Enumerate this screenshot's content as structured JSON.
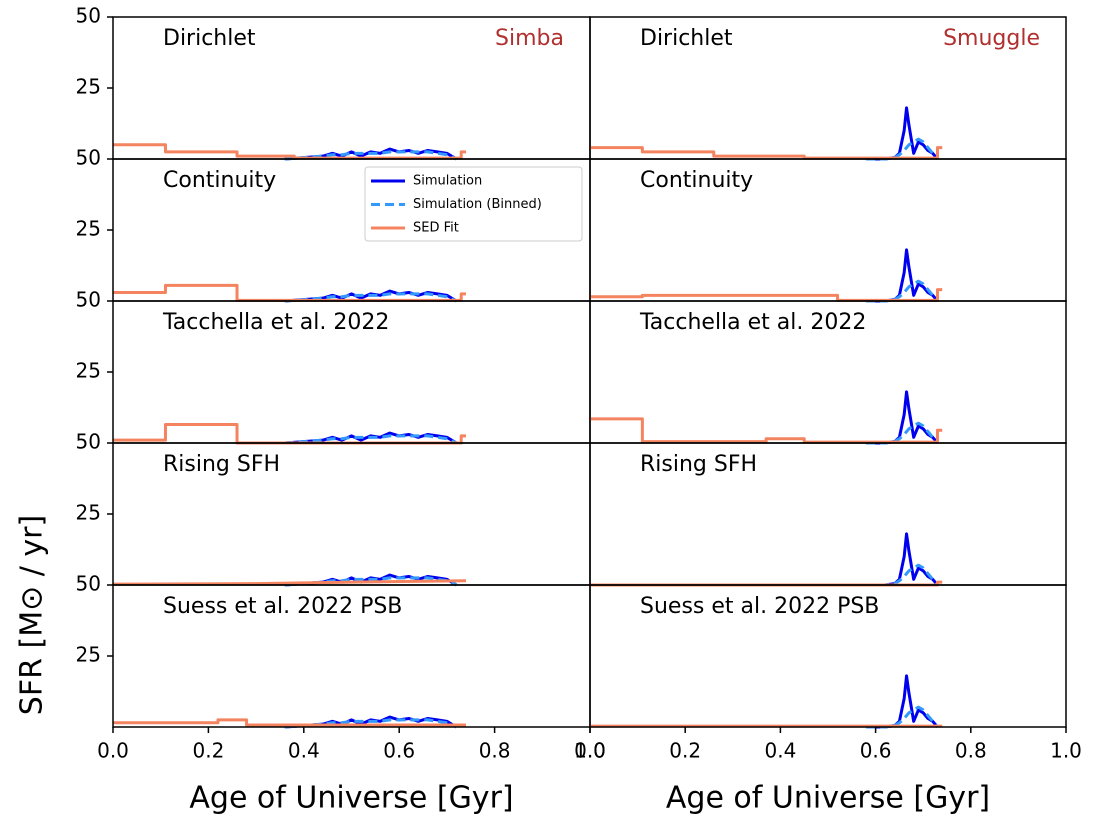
{
  "chart_data": [
    {
      "type": "line",
      "title": "Dirichlet",
      "label": "Simba",
      "ylim": [
        0,
        50
      ],
      "yticks": [
        25,
        50
      ],
      "xlim": [
        0,
        1
      ],
      "series": [
        {
          "color": "#0000ee",
          "x": [
            0.36,
            0.4,
            0.44,
            0.46,
            0.48,
            0.5,
            0.52,
            0.54,
            0.56,
            0.58,
            0.6,
            0.62,
            0.64,
            0.66,
            0.68,
            0.7,
            0.72
          ],
          "values": [
            0,
            0.5,
            1,
            2,
            1,
            2.5,
            1,
            2.5,
            2,
            3.5,
            2.5,
            3,
            2,
            3,
            2.5,
            2,
            0
          ]
        },
        {
          "color": "#3399ff",
          "linestyle": "dashed",
          "x": [
            0.36,
            0.4,
            0.44,
            0.46,
            0.48,
            0.5,
            0.52,
            0.54,
            0.56,
            0.58,
            0.6,
            0.62,
            0.64,
            0.66,
            0.68,
            0.7,
            0.72
          ],
          "values": [
            0,
            0.5,
            1,
            1.5,
            1.5,
            2,
            2,
            2,
            2,
            2.5,
            2.5,
            2.5,
            2.5,
            2.5,
            2,
            1.5,
            0
          ]
        },
        {
          "color": "#f4845f",
          "x": [
            0,
            0.11,
            0.11,
            0.26,
            0.26,
            0.38,
            0.38,
            0.73,
            0.73,
            0.74
          ],
          "values": [
            5,
            5,
            2.5,
            2.5,
            1,
            1,
            0.3,
            0.3,
            2.5,
            2.5
          ]
        }
      ]
    },
    {
      "type": "line",
      "title": "Continuity",
      "ylim": [
        0,
        50
      ],
      "yticks": [
        25,
        50
      ],
      "xlim": [
        0,
        1
      ],
      "legend": "upper right",
      "series": [
        {
          "name": "Simulation",
          "color": "#0000ee",
          "x": [
            0.36,
            0.4,
            0.44,
            0.46,
            0.48,
            0.5,
            0.52,
            0.54,
            0.56,
            0.58,
            0.6,
            0.62,
            0.64,
            0.66,
            0.68,
            0.7,
            0.72
          ],
          "values": [
            0,
            0.5,
            1,
            2,
            1,
            2.5,
            1,
            2.5,
            2,
            3.5,
            2.5,
            3,
            2,
            3,
            2.5,
            2,
            0
          ]
        },
        {
          "name": "Simulation (Binned)",
          "color": "#3399ff",
          "linestyle": "dashed",
          "x": [
            0.36,
            0.4,
            0.44,
            0.46,
            0.48,
            0.5,
            0.52,
            0.54,
            0.56,
            0.58,
            0.6,
            0.62,
            0.64,
            0.66,
            0.68,
            0.7,
            0.72
          ],
          "values": [
            0,
            0.5,
            1,
            1.5,
            1.5,
            2,
            2,
            2,
            2,
            2.5,
            2.5,
            2.5,
            2.5,
            2.5,
            2,
            1.5,
            0
          ]
        },
        {
          "name": "SED Fit",
          "color": "#f4845f",
          "x": [
            0,
            0.11,
            0.11,
            0.26,
            0.26,
            0.73,
            0.73,
            0.74
          ],
          "values": [
            3,
            3,
            5.5,
            5.5,
            0.2,
            0.2,
            2.5,
            2.5
          ]
        }
      ]
    },
    {
      "type": "line",
      "title": "Tacchella et al. 2022",
      "ylim": [
        0,
        50
      ],
      "yticks": [
        25,
        50
      ],
      "xlim": [
        0,
        1
      ],
      "series": [
        {
          "color": "#0000ee",
          "x": [
            0.36,
            0.4,
            0.44,
            0.46,
            0.48,
            0.5,
            0.52,
            0.54,
            0.56,
            0.58,
            0.6,
            0.62,
            0.64,
            0.66,
            0.68,
            0.7,
            0.72
          ],
          "values": [
            0,
            0.5,
            1,
            2,
            1,
            2.5,
            1,
            2.5,
            2,
            3.5,
            2.5,
            3,
            2,
            3,
            2.5,
            2,
            0
          ]
        },
        {
          "color": "#3399ff",
          "linestyle": "dashed",
          "x": [
            0.36,
            0.4,
            0.44,
            0.46,
            0.48,
            0.5,
            0.52,
            0.54,
            0.56,
            0.58,
            0.6,
            0.62,
            0.64,
            0.66,
            0.68,
            0.7,
            0.72
          ],
          "values": [
            0,
            0.5,
            1,
            1.5,
            1.5,
            2,
            2,
            2,
            2,
            2.5,
            2.5,
            2.5,
            2.5,
            2.5,
            2,
            1.5,
            0
          ]
        },
        {
          "color": "#f4845f",
          "x": [
            0,
            0.11,
            0.11,
            0.26,
            0.26,
            0.73,
            0.73,
            0.74
          ],
          "values": [
            1,
            1,
            6.5,
            6.5,
            0,
            0,
            2.5,
            2.5
          ]
        }
      ]
    },
    {
      "type": "line",
      "title": "Rising SFH",
      "ylim": [
        0,
        50
      ],
      "yticks": [
        25,
        50
      ],
      "xlim": [
        0,
        1
      ],
      "series": [
        {
          "color": "#0000ee",
          "x": [
            0.36,
            0.4,
            0.44,
            0.46,
            0.48,
            0.5,
            0.52,
            0.54,
            0.56,
            0.58,
            0.6,
            0.62,
            0.64,
            0.66,
            0.68,
            0.7,
            0.72
          ],
          "values": [
            0,
            0.5,
            1,
            2,
            1,
            2.5,
            1,
            2.5,
            2,
            3.5,
            2.5,
            3,
            2,
            3,
            2.5,
            2,
            0
          ]
        },
        {
          "color": "#3399ff",
          "linestyle": "dashed",
          "x": [
            0.36,
            0.4,
            0.44,
            0.46,
            0.48,
            0.5,
            0.52,
            0.54,
            0.56,
            0.58,
            0.6,
            0.62,
            0.64,
            0.66,
            0.68,
            0.7,
            0.72
          ],
          "values": [
            0,
            0.5,
            1,
            1.5,
            1.5,
            2,
            2,
            2,
            2,
            2.5,
            2.5,
            2.5,
            2.5,
            2.5,
            2,
            1.5,
            0
          ]
        },
        {
          "color": "#f4845f",
          "x": [
            0,
            0.3,
            0.5,
            0.74
          ],
          "values": [
            0.3,
            0.5,
            1,
            1.5
          ]
        }
      ]
    },
    {
      "type": "line",
      "title": "Suess et al. 2022 PSB",
      "ylim": [
        0,
        50
      ],
      "yticks": [
        25,
        50
      ],
      "xlim": [
        0,
        1
      ],
      "xticks": [
        {
          "value": 0,
          "label": "0.0"
        },
        {
          "value": 0.2,
          "label": "0.2"
        },
        {
          "value": 0.4,
          "label": "0.4"
        },
        {
          "value": 0.6,
          "label": "0.6"
        },
        {
          "value": 0.8,
          "label": "0.8"
        },
        {
          "value": 1,
          "label": "1.0"
        }
      ],
      "xlabel": "Age of Universe [Gyr]",
      "ylabel": "SFR [M⊙ / yr]",
      "series": [
        {
          "color": "#0000ee",
          "x": [
            0.36,
            0.4,
            0.44,
            0.46,
            0.48,
            0.5,
            0.52,
            0.54,
            0.56,
            0.58,
            0.6,
            0.62,
            0.64,
            0.66,
            0.68,
            0.7,
            0.72
          ],
          "values": [
            0,
            0.5,
            1,
            2,
            1,
            2.5,
            1,
            2.5,
            2,
            3.5,
            2.5,
            3,
            2,
            3,
            2.5,
            2,
            0
          ]
        },
        {
          "color": "#3399ff",
          "linestyle": "dashed",
          "x": [
            0.36,
            0.4,
            0.44,
            0.46,
            0.48,
            0.5,
            0.52,
            0.54,
            0.56,
            0.58,
            0.6,
            0.62,
            0.64,
            0.66,
            0.68,
            0.7,
            0.72
          ],
          "values": [
            0,
            0.5,
            1,
            1.5,
            1.5,
            2,
            2,
            2,
            2,
            2.5,
            2.5,
            2.5,
            2.5,
            2.5,
            2,
            1.5,
            0
          ]
        },
        {
          "color": "#f4845f",
          "x": [
            0,
            0.22,
            0.22,
            0.28,
            0.28,
            0.74
          ],
          "values": [
            1.5,
            1.5,
            2.5,
            2.5,
            0.7,
            0.7
          ]
        }
      ]
    },
    {
      "type": "line",
      "title": "Dirichlet",
      "label": "Smuggle",
      "ylim": [
        0,
        50
      ],
      "xlim": [
        0,
        1
      ],
      "series": [
        {
          "color": "#0000ee",
          "x": [
            0.58,
            0.62,
            0.64,
            0.65,
            0.66,
            0.665,
            0.67,
            0.68,
            0.69,
            0.7,
            0.71,
            0.72,
            0.73
          ],
          "values": [
            0,
            0,
            0.5,
            2,
            10,
            18,
            12,
            2,
            6,
            5,
            3,
            2,
            0
          ]
        },
        {
          "color": "#3399ff",
          "linestyle": "dashed",
          "x": [
            0.58,
            0.62,
            0.64,
            0.65,
            0.66,
            0.665,
            0.67,
            0.68,
            0.69,
            0.7,
            0.71,
            0.72,
            0.73
          ],
          "values": [
            0,
            0,
            0.5,
            1.5,
            3,
            4,
            5,
            6,
            7,
            6,
            4,
            2,
            0
          ]
        },
        {
          "color": "#f4845f",
          "x": [
            0,
            0.11,
            0.11,
            0.26,
            0.26,
            0.45,
            0.45,
            0.73,
            0.73,
            0.74
          ],
          "values": [
            4,
            4,
            2.5,
            2.5,
            1,
            1,
            0.3,
            0.3,
            4,
            4
          ]
        }
      ]
    },
    {
      "type": "line",
      "title": "Continuity",
      "ylim": [
        0,
        50
      ],
      "xlim": [
        0,
        1
      ],
      "series": [
        {
          "color": "#0000ee",
          "x": [
            0.58,
            0.62,
            0.64,
            0.65,
            0.66,
            0.665,
            0.67,
            0.68,
            0.69,
            0.7,
            0.71,
            0.72,
            0.73
          ],
          "values": [
            0,
            0,
            0.5,
            2,
            10,
            18,
            12,
            2,
            6,
            5,
            3,
            2,
            0
          ]
        },
        {
          "color": "#3399ff",
          "linestyle": "dashed",
          "x": [
            0.58,
            0.62,
            0.64,
            0.65,
            0.66,
            0.665,
            0.67,
            0.68,
            0.69,
            0.7,
            0.71,
            0.72,
            0.73
          ],
          "values": [
            0,
            0,
            0.5,
            1.5,
            3,
            4,
            5,
            6,
            7,
            6,
            4,
            2,
            0
          ]
        },
        {
          "color": "#f4845f",
          "x": [
            0,
            0.11,
            0.11,
            0.52,
            0.52,
            0.73,
            0.73,
            0.74
          ],
          "values": [
            1.5,
            1.5,
            2,
            2,
            0.2,
            0.2,
            4,
            4
          ]
        }
      ]
    },
    {
      "type": "line",
      "title": "Tacchella et al. 2022",
      "ylim": [
        0,
        50
      ],
      "xlim": [
        0,
        1
      ],
      "series": [
        {
          "color": "#0000ee",
          "x": [
            0.58,
            0.62,
            0.64,
            0.65,
            0.66,
            0.665,
            0.67,
            0.68,
            0.69,
            0.7,
            0.71,
            0.72,
            0.73
          ],
          "values": [
            0,
            0,
            0.5,
            2,
            10,
            18,
            12,
            2,
            6,
            5,
            3,
            2,
            0
          ]
        },
        {
          "color": "#3399ff",
          "linestyle": "dashed",
          "x": [
            0.58,
            0.62,
            0.64,
            0.65,
            0.66,
            0.665,
            0.67,
            0.68,
            0.69,
            0.7,
            0.71,
            0.72,
            0.73
          ],
          "values": [
            0,
            0,
            0.5,
            1.5,
            3,
            4,
            5,
            6,
            7,
            6,
            4,
            2,
            0
          ]
        },
        {
          "color": "#f4845f",
          "x": [
            0,
            0.11,
            0.11,
            0.37,
            0.37,
            0.45,
            0.45,
            0.73,
            0.73,
            0.74
          ],
          "values": [
            8.5,
            8.5,
            0.5,
            0.5,
            1.5,
            1.5,
            0.3,
            0.3,
            4.5,
            4.5
          ]
        }
      ]
    },
    {
      "type": "line",
      "title": "Rising SFH",
      "ylim": [
        0,
        50
      ],
      "xlim": [
        0,
        1
      ],
      "series": [
        {
          "color": "#0000ee",
          "x": [
            0.58,
            0.62,
            0.64,
            0.65,
            0.66,
            0.665,
            0.67,
            0.68,
            0.69,
            0.7,
            0.71,
            0.72,
            0.73
          ],
          "values": [
            0,
            0,
            0.5,
            2,
            10,
            18,
            12,
            2,
            6,
            5,
            3,
            2,
            0
          ]
        },
        {
          "color": "#3399ff",
          "linestyle": "dashed",
          "x": [
            0.58,
            0.62,
            0.64,
            0.65,
            0.66,
            0.665,
            0.67,
            0.68,
            0.69,
            0.7,
            0.71,
            0.72,
            0.73
          ],
          "values": [
            0,
            0,
            0.5,
            1.5,
            3,
            4,
            5,
            6,
            7,
            6,
            4,
            2,
            0
          ]
        },
        {
          "color": "#f4845f",
          "x": [
            0,
            0.73,
            0.73,
            0.74
          ],
          "values": [
            0,
            0,
            1,
            1
          ]
        }
      ]
    },
    {
      "type": "line",
      "title": "Suess et al. 2022 PSB",
      "ylim": [
        0,
        50
      ],
      "xlim": [
        0,
        1
      ],
      "xticks": [
        {
          "value": 0,
          "label": "0.0"
        },
        {
          "value": 0.2,
          "label": "0.2"
        },
        {
          "value": 0.4,
          "label": "0.4"
        },
        {
          "value": 0.6,
          "label": "0.6"
        },
        {
          "value": 0.8,
          "label": "0.8"
        },
        {
          "value": 1,
          "label": "1.0"
        }
      ],
      "xlabel": "Age of Universe [Gyr]",
      "series": [
        {
          "color": "#0000ee",
          "x": [
            0.58,
            0.62,
            0.64,
            0.65,
            0.66,
            0.665,
            0.67,
            0.68,
            0.69,
            0.7,
            0.71,
            0.72,
            0.73
          ],
          "values": [
            0,
            0,
            0.5,
            2,
            10,
            18,
            12,
            2,
            6,
            5,
            3,
            2,
            0
          ]
        },
        {
          "color": "#3399ff",
          "linestyle": "dashed",
          "x": [
            0.58,
            0.62,
            0.64,
            0.65,
            0.66,
            0.665,
            0.67,
            0.68,
            0.69,
            0.7,
            0.71,
            0.72,
            0.73
          ],
          "values": [
            0,
            0,
            0.5,
            1.5,
            3,
            4,
            5,
            6,
            7,
            6,
            4,
            2,
            0
          ]
        },
        {
          "color": "#f4845f",
          "x": [
            0,
            0.74
          ],
          "values": [
            0.3,
            0.3
          ]
        }
      ]
    }
  ]
}
